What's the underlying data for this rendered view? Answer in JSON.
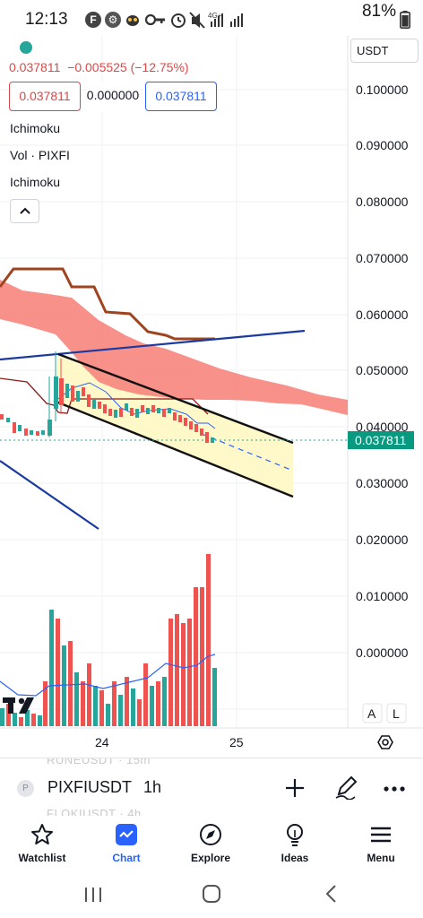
{
  "status_bar": {
    "time": "12:13",
    "battery": "81%",
    "network": "4G+",
    "icons": [
      "f-icon",
      "gear-icon",
      "bug-icon",
      "key-icon",
      "alarm-icon",
      "mute-icon",
      "signal-icon",
      "battery-icon"
    ]
  },
  "chart_header": {
    "last_price": "0.037811",
    "change": "−0.005525 (−12.75%)",
    "bid": "0.037811",
    "spread": "0.000000",
    "ask": "0.037811",
    "indicators": [
      "Ichimoku",
      "Vol · PIXFI",
      "Ichimoku"
    ],
    "currency": "USDT"
  },
  "colors": {
    "up": "#26a69a",
    "down": "#ef5350",
    "accent": "#2962ff",
    "cloud": "#f7857d",
    "channel": "#fff8c9"
  },
  "chart_data": {
    "type": "candlestick",
    "y_ticks": [
      "0.100000",
      "0.090000",
      "0.080000",
      "0.070000",
      "0.060000",
      "0.050000",
      "0.040000",
      "0.030000",
      "0.020000",
      "0.010000",
      "0.000000"
    ],
    "x_ticks": [
      "24",
      "25"
    ],
    "current_price_label": "0.037811",
    "scale_buttons": [
      "A",
      "L"
    ]
  },
  "symbol_bar": {
    "ghost_above": "RUNEUSDT · 15m",
    "ghost_below": "FLOKIUSDT · 4h",
    "symbol": "PIXFIUSDT",
    "timeframe": "1h",
    "logo_letter": "P"
  },
  "bottom_nav": {
    "items": [
      {
        "label": "Watchlist",
        "icon": "star-icon"
      },
      {
        "label": "Chart",
        "icon": "chart-icon"
      },
      {
        "label": "Explore",
        "icon": "compass-icon"
      },
      {
        "label": "Ideas",
        "icon": "lightbulb-icon"
      },
      {
        "label": "Menu",
        "icon": "hamburger-icon"
      }
    ],
    "active": "Chart"
  }
}
